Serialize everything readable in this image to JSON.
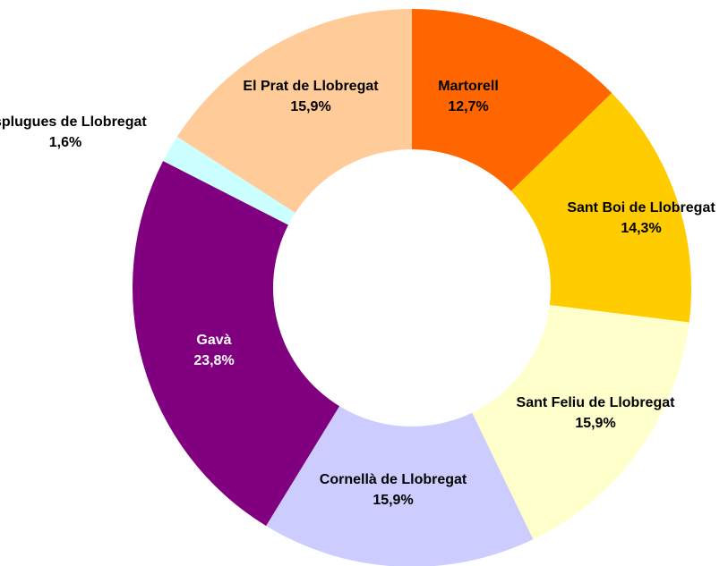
{
  "chart_data": {
    "type": "donut",
    "categories": [
      "Martorell",
      "Sant Boi de Llobregat",
      "Sant Feliu de Llobregat",
      "Cornellà de Llobregat",
      "Gavà",
      "Esplugues de Llobregat",
      "El Prat de Llobregat"
    ],
    "values": [
      12.7,
      14.3,
      15.9,
      15.9,
      23.8,
      1.6,
      15.9
    ],
    "value_labels": [
      "12,7%",
      "14,3%",
      "15,9%",
      "15,9%",
      "23,8%",
      "1,6%",
      "15,9%"
    ],
    "colors": [
      "#ff6600",
      "#ffcc00",
      "#ffffcc",
      "#ccccff",
      "#800080",
      "#ccffff",
      "#ffcc99"
    ]
  }
}
